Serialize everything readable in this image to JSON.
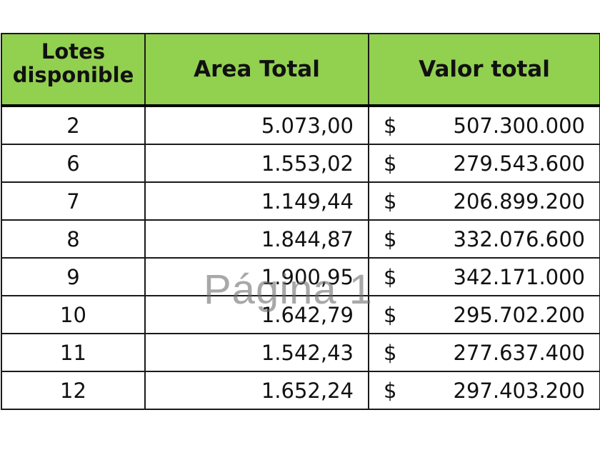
{
  "table": {
    "headers": {
      "lotes": "Lotes disponible",
      "area": "Area Total",
      "valor": "Valor total"
    },
    "rows": [
      {
        "lote": "2",
        "area": "5.073,00",
        "currency": "$",
        "valor": "507.300.000"
      },
      {
        "lote": "6",
        "area": "1.553,02",
        "currency": "$",
        "valor": "279.543.600"
      },
      {
        "lote": "7",
        "area": "1.149,44",
        "currency": "$",
        "valor": "206.899.200"
      },
      {
        "lote": "8",
        "area": "1.844,87",
        "currency": "$",
        "valor": "332.076.600"
      },
      {
        "lote": "9",
        "area": "1.900,95",
        "currency": "$",
        "valor": "342.171.000"
      },
      {
        "lote": "10",
        "area": "1.642,79",
        "currency": "$",
        "valor": "295.702.200"
      },
      {
        "lote": "11",
        "area": "1.542,43",
        "currency": "$",
        "valor": "277.637.400"
      },
      {
        "lote": "12",
        "area": "1.652,24",
        "currency": "$",
        "valor": "297.403.200"
      }
    ]
  },
  "watermark": "Página 1",
  "colors": {
    "header_fill": "#92d050",
    "border": "#1a1a1a"
  }
}
